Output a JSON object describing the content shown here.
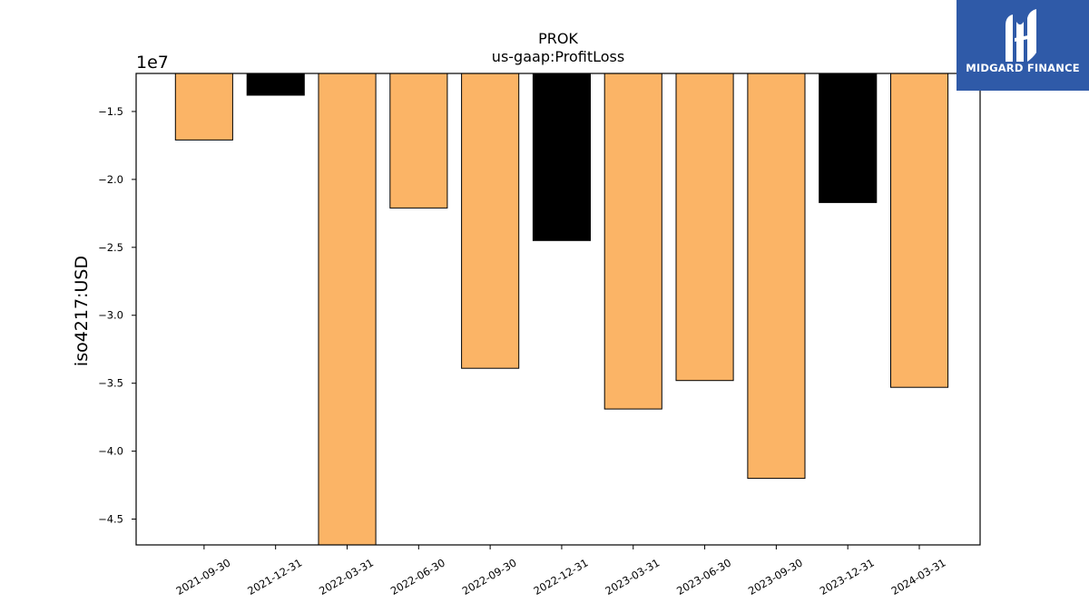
{
  "chart_data": {
    "type": "bar",
    "title": "PROK",
    "subtitle": "us-gaap:ProfitLoss",
    "ylabel": "iso4217:USD",
    "xlabel": "",
    "offset_label": "1e7",
    "categories": [
      "2021-09-30",
      "2021-12-31",
      "2022-03-31",
      "2022-06-30",
      "2022-09-30",
      "2022-12-31",
      "2023-03-31",
      "2023-06-30",
      "2023-09-30",
      "2023-12-31",
      "2024-03-31"
    ],
    "values": [
      -17100000,
      -13800000,
      -47000000,
      -22100000,
      -33900000,
      -24500000,
      -36900000,
      -34800000,
      -42000000,
      -21700000,
      -35300000
    ],
    "bar_colors": [
      "#fbb466",
      "#000000",
      "#fbb466",
      "#fbb466",
      "#fbb466",
      "#000000",
      "#fbb466",
      "#fbb466",
      "#fbb466",
      "#000000",
      "#fbb466"
    ],
    "ylim": [
      -12200000,
      -46900000
    ],
    "yticks": [
      -15000000,
      -20000000,
      -25000000,
      -30000000,
      -35000000,
      -40000000,
      -45000000
    ],
    "ytick_labels": [
      "−1.5",
      "−2.0",
      "−2.5",
      "−3.0",
      "−3.5",
      "−4.0",
      "−4.5"
    ],
    "grid": false,
    "legend": "none"
  },
  "logo": {
    "text": "MIDGARD FINANCE",
    "background": "#2f5aa8",
    "icon": "midgard-logo-icon"
  }
}
